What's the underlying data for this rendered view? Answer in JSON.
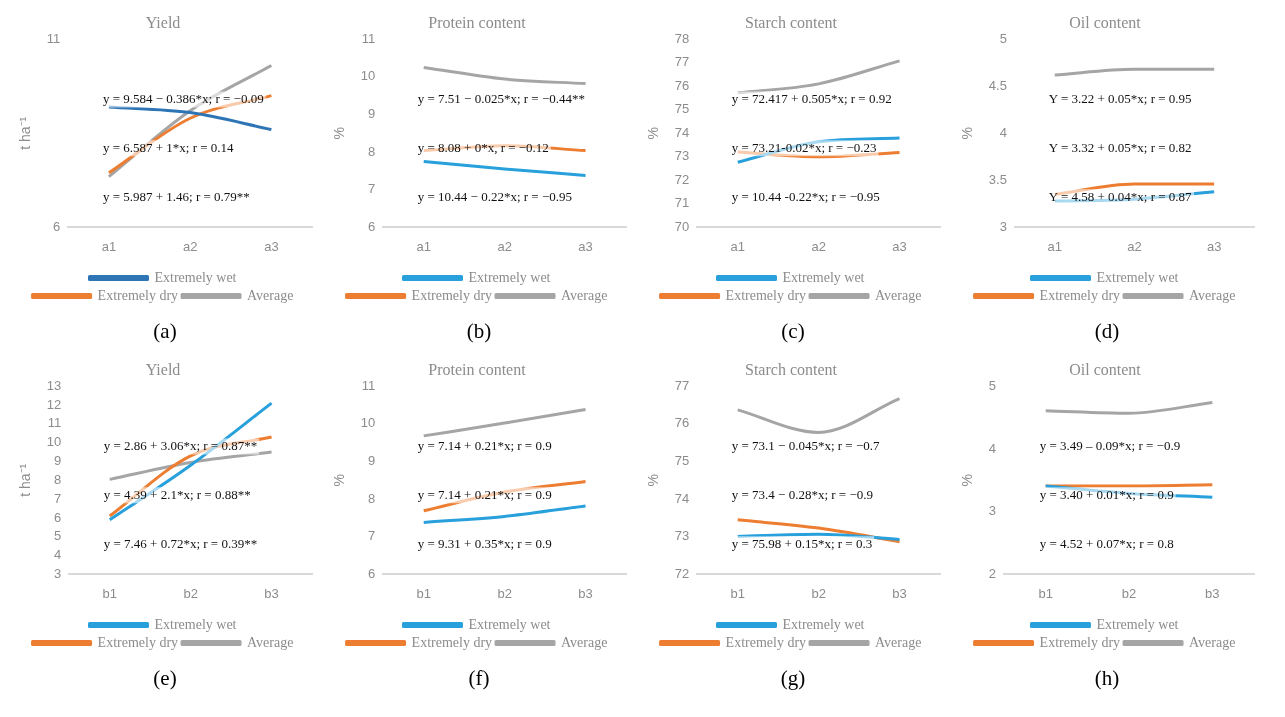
{
  "chart_data": [
    {
      "type": "line",
      "title": "Yield",
      "ylabel": "t ha⁻¹",
      "categories": [
        "a1",
        "a2",
        "a3"
      ],
      "ylim": [
        6,
        11
      ],
      "yticks": [
        6,
        11
      ],
      "grid": false,
      "legend": "bottom",
      "line_style": "solid",
      "marker": "none",
      "series": [
        {
          "name": "Extremely wet",
          "color": "#2e75b6",
          "values": [
            9.2,
            9.05,
            8.6
          ]
        },
        {
          "name": "Extremely dry",
          "color": "#ed7d31",
          "values": [
            7.45,
            8.9,
            9.5
          ]
        },
        {
          "name": "Average",
          "color": "#a5a5a5",
          "values": [
            7.35,
            9.1,
            10.3
          ]
        }
      ],
      "annotations": [
        "y = 9.584 − 0.386*x; r = −0.09",
        "y = 6.587 + 1*x; r = 0.14",
        "y = 5.987 + 1.46; r = 0.79**",
        "(a)"
      ]
    },
    {
      "type": "line",
      "title": "Protein content",
      "ylabel": "%",
      "categories": [
        "a1",
        "a2",
        "a3"
      ],
      "ylim": [
        6,
        11
      ],
      "yticks": [
        6,
        7,
        8,
        9,
        10,
        11
      ],
      "grid": false,
      "legend": "bottom",
      "line_style": "solid",
      "marker": "none",
      "series": [
        {
          "name": "Extremely wet",
          "color": "#27a0dc",
          "values": [
            7.75,
            7.55,
            7.38
          ]
        },
        {
          "name": "Extremely dry",
          "color": "#ed7d31",
          "values": [
            8.04,
            8.17,
            8.04
          ]
        },
        {
          "name": "Average",
          "color": "#a5a5a5",
          "values": [
            10.25,
            9.94,
            9.82
          ]
        }
      ],
      "annotations": [
        "y = 7.51 − 0.025*x; r = −0.44**",
        "y = 8.08 + 0*x, r = −0.12",
        "y = 10.44 − 0.22*x; r = −0.95",
        "(b)"
      ]
    },
    {
      "type": "line",
      "title": "Starch content",
      "ylabel": "%",
      "categories": [
        "a1",
        "a2",
        "a3"
      ],
      "ylim": [
        70,
        78
      ],
      "yticks": [
        70,
        71,
        72,
        73,
        74,
        75,
        76,
        77,
        78
      ],
      "grid": false,
      "legend": "bottom",
      "line_style": "solid",
      "marker": "none",
      "series": [
        {
          "name": "Extremely wet",
          "color": "#27a0dc",
          "values": [
            72.77,
            73.64,
            73.8
          ]
        },
        {
          "name": "Extremely dry",
          "color": "#ed7d31",
          "values": [
            73.2,
            73.0,
            73.18
          ]
        },
        {
          "name": "Average",
          "color": "#a5a5a5",
          "values": [
            75.72,
            76.1,
            77.08
          ]
        }
      ],
      "annotations": [
        "y = 72.417 + 0.505*x; r = 0.92",
        "y = 73.21-0.02*x; r = −0.23",
        "y = 10.44 -0.22*x; r = −0.95",
        "(c)"
      ]
    },
    {
      "type": "line",
      "title": "Oil content",
      "ylabel": "%",
      "categories": [
        "a1",
        "a2",
        "a3"
      ],
      "ylim": [
        3,
        5
      ],
      "yticks": [
        3,
        3.5,
        4,
        4.5,
        5
      ],
      "grid": false,
      "legend": "bottom",
      "line_style": "solid",
      "marker": "none",
      "series": [
        {
          "name": "Extremely wet",
          "color": "#27a0dc",
          "values": [
            3.28,
            3.3,
            3.38
          ]
        },
        {
          "name": "Extremely dry",
          "color": "#ed7d31",
          "values": [
            3.35,
            3.46,
            3.46
          ]
        },
        {
          "name": "Average",
          "color": "#a5a5a5",
          "values": [
            4.62,
            4.68,
            4.68
          ]
        }
      ],
      "annotations": [
        "Y = 3.22 + 0.05*x; r = 0.95",
        "Y = 3.32 + 0.05*x; r = 0.82",
        "Y = 4.58 + 0.04*x; r = 0.87",
        "(d)"
      ]
    },
    {
      "type": "line",
      "title": "Yield",
      "ylabel": "t ha⁻¹",
      "categories": [
        "b1",
        "b2",
        "b3"
      ],
      "ylim": [
        3,
        13
      ],
      "yticks": [
        3,
        4,
        5,
        6,
        7,
        8,
        9,
        10,
        11,
        12,
        13
      ],
      "grid": false,
      "legend": "bottom",
      "line_style": "solid",
      "marker": "none",
      "series": [
        {
          "name": "Extremely wet",
          "color": "#27a0dc",
          "values": [
            5.9,
            8.8,
            12.1
          ]
        },
        {
          "name": "Extremely dry",
          "color": "#ed7d31",
          "values": [
            6.1,
            9.3,
            10.3
          ]
        },
        {
          "name": "Average",
          "color": "#a5a5a5",
          "values": [
            8.05,
            8.95,
            9.5
          ]
        }
      ],
      "annotations": [
        "y = 2.86 + 3.06*x; r = 0.87**",
        "y = 4.39 + 2.1*x; r = 0.88**",
        "y = 7.46 + 0.72*x; r = 0.39**",
        "(e)"
      ]
    },
    {
      "type": "line",
      "title": "Protein content",
      "ylabel": "%",
      "categories": [
        "b1",
        "b2",
        "b3"
      ],
      "ylim": [
        6,
        11
      ],
      "yticks": [
        6,
        7,
        8,
        9,
        10,
        11
      ],
      "grid": false,
      "legend": "bottom",
      "line_style": "solid",
      "marker": "none",
      "series": [
        {
          "name": "Extremely wet",
          "color": "#27a0dc",
          "values": [
            7.38,
            7.54,
            7.82
          ]
        },
        {
          "name": "Extremely dry",
          "color": "#ed7d31",
          "values": [
            7.69,
            8.19,
            8.47
          ]
        },
        {
          "name": "Average",
          "color": "#a5a5a5",
          "values": [
            9.68,
            10.02,
            10.38
          ]
        }
      ],
      "annotations": [
        "y = 7.14 + 0.21*x; r = 0.9",
        "y = 7.14 + 0.21*x; r = 0.9",
        "y = 9.31 + 0.35*x; r = 0.9",
        "(f)"
      ]
    },
    {
      "type": "line",
      "title": "Starch content",
      "ylabel": "%",
      "categories": [
        "b1",
        "b2",
        "b3"
      ],
      "ylim": [
        72,
        77
      ],
      "yticks": [
        72,
        73,
        74,
        75,
        76,
        77
      ],
      "grid": false,
      "legend": "bottom",
      "line_style": "solid",
      "marker": "none",
      "series": [
        {
          "name": "Extremely wet",
          "color": "#27a0dc",
          "values": [
            73.01,
            73.07,
            72.93
          ]
        },
        {
          "name": "Extremely dry",
          "color": "#ed7d31",
          "values": [
            73.45,
            73.23,
            72.87
          ]
        },
        {
          "name": "Average",
          "color": "#a5a5a5",
          "values": [
            76.37,
            75.77,
            76.67
          ]
        }
      ],
      "annotations": [
        "y = 73.1 − 0.045*x; r = −0.7",
        "y = 73.4 − 0.28*x; r = −0.9",
        "y = 75.98 + 0.15*x; r = 0.3",
        "(g)"
      ]
    },
    {
      "type": "line",
      "title": "Oil content",
      "ylabel": "%",
      "categories": [
        "b1",
        "b2",
        "b3"
      ],
      "ylim": [
        2,
        5
      ],
      "yticks": [
        2,
        3,
        4,
        5
      ],
      "grid": false,
      "legend": "bottom",
      "line_style": "solid",
      "marker": "none",
      "series": [
        {
          "name": "Extremely wet",
          "color": "#27a0dc",
          "values": [
            3.41,
            3.29,
            3.23
          ]
        },
        {
          "name": "Extremely dry",
          "color": "#ed7d31",
          "values": [
            3.41,
            3.41,
            3.43
          ]
        },
        {
          "name": "Average",
          "color": "#a5a5a5",
          "values": [
            4.61,
            4.57,
            4.74
          ]
        }
      ],
      "annotations": [
        "y = 3.49 – 0.09*x; r = −0.9",
        "y = 3.40 + 0.01*x; r = 0.9",
        "y = 4.52 + 0.07*x; r = 0.8",
        "(h)"
      ]
    }
  ]
}
